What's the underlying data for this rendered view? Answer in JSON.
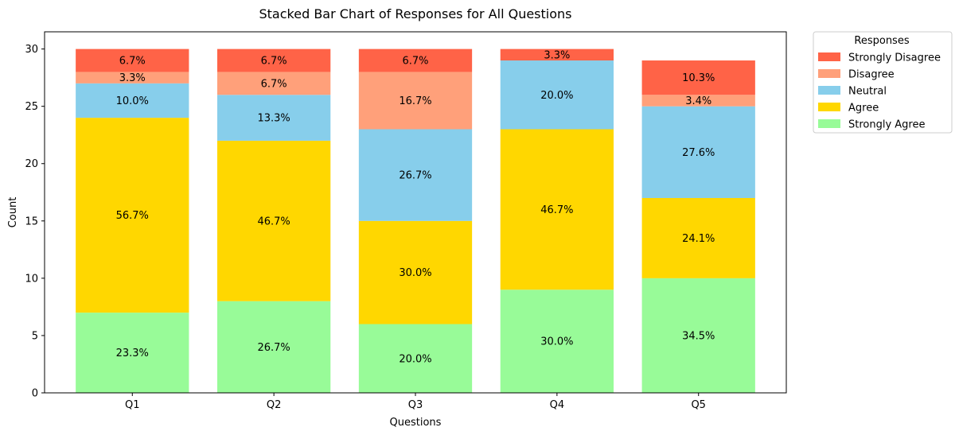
{
  "chart_data": {
    "type": "bar",
    "stacked": true,
    "title": "Stacked Bar Chart of Responses for All Questions",
    "xlabel": "Questions",
    "ylabel": "Count",
    "ylim": [
      0,
      31.5
    ],
    "yticks": [
      0,
      5,
      10,
      15,
      20,
      25,
      30
    ],
    "categories": [
      "Q1",
      "Q2",
      "Q3",
      "Q4",
      "Q5"
    ],
    "legend": {
      "title": "Responses",
      "placement": "outside-top-right"
    },
    "series": [
      {
        "name": "Strongly Agree",
        "color": "#98FB98",
        "values": [
          7,
          8,
          6,
          9,
          10
        ],
        "labels": [
          "23.3%",
          "26.7%",
          "20.0%",
          "30.0%",
          "34.5%"
        ]
      },
      {
        "name": "Agree",
        "color": "#FFD700",
        "values": [
          17,
          14,
          9,
          14,
          7
        ],
        "labels": [
          "56.7%",
          "46.7%",
          "30.0%",
          "46.7%",
          "24.1%"
        ]
      },
      {
        "name": "Neutral",
        "color": "#87CEEB",
        "values": [
          3,
          4,
          8,
          6,
          8
        ],
        "labels": [
          "10.0%",
          "13.3%",
          "26.7%",
          "20.0%",
          "27.6%"
        ]
      },
      {
        "name": "Disagree",
        "color": "#FFA07A",
        "values": [
          1,
          2,
          5,
          0,
          1
        ],
        "labels": [
          "3.3%",
          "6.7%",
          "16.7%",
          "",
          "3.4%"
        ]
      },
      {
        "name": "Strongly Disagree",
        "color": "#FF6347",
        "values": [
          2,
          2,
          2,
          1,
          3
        ],
        "labels": [
          "6.7%",
          "6.7%",
          "6.7%",
          "3.3%",
          "10.3%"
        ]
      }
    ]
  }
}
